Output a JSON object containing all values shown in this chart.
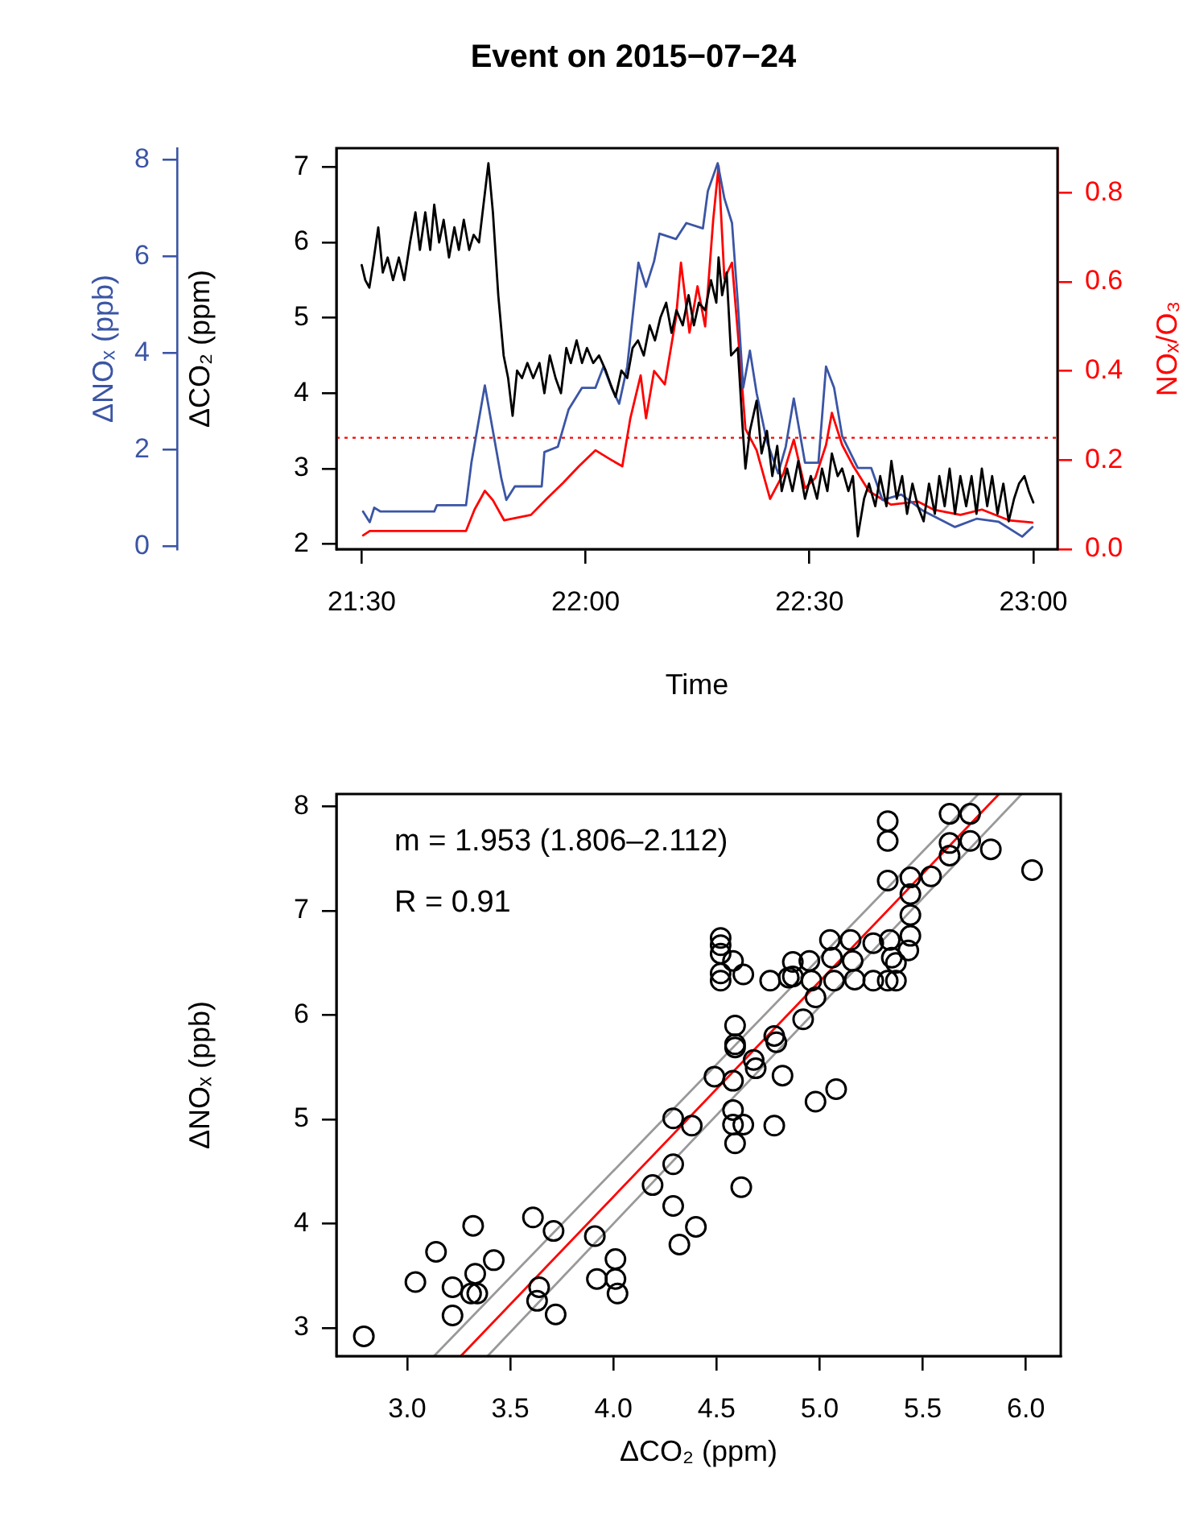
{
  "chart_data": [
    {
      "type": "line",
      "title": "Event on 2015−07−24",
      "xlabel": "Time",
      "ylabel": "ΔCO₂ (ppm)",
      "y2label": "NOₓ/O₃",
      "y3label": "ΔNOₓ (ppb)",
      "xlim": [
        21.4435,
        23.054
      ],
      "xticks": [
        {
          "value": 21.5,
          "label": "21:30"
        },
        {
          "value": 22,
          "label": "22:00"
        },
        {
          "value": 22.5,
          "label": "22:30"
        },
        {
          "value": 23,
          "label": "23:00"
        }
      ],
      "ylim": [
        1.93,
        7.25
      ],
      "yticks": [
        2,
        3,
        4,
        5,
        6,
        7
      ],
      "y2lim": [
        0,
        0.9
      ],
      "y2ticks": [
        {
          "value": 0,
          "label": "0.0"
        },
        0.2,
        0.4,
        0.6,
        0.8
      ],
      "y3lim": [
        -0.06,
        8.24
      ],
      "y3ticks": [
        0,
        2,
        4,
        6,
        8
      ],
      "grid": false,
      "legend": false,
      "line_style": "solid",
      "ref_lines": [
        {
          "axis": "y2",
          "value": 0.25,
          "color": "#ff0000",
          "line_style": "dotted"
        }
      ],
      "series": [
        {
          "color": "#000000",
          "x": [
            21.5,
            21.508,
            21.517,
            21.525,
            21.537,
            21.547,
            21.558,
            21.57,
            21.583,
            21.595,
            21.608,
            21.62,
            21.63,
            21.642,
            21.653,
            21.662,
            21.673,
            21.683,
            21.695,
            21.707,
            21.717,
            21.728,
            21.74,
            21.75,
            21.762,
            21.772,
            21.783,
            21.793,
            21.805,
            21.817,
            21.827,
            21.837,
            21.847,
            21.858,
            21.87,
            21.883,
            21.897,
            21.908,
            21.92,
            21.933,
            21.945,
            21.957,
            21.967,
            21.98,
            21.992,
            22.003,
            22.017,
            22.03,
            22.045,
            22.057,
            22.067,
            22.08,
            22.093,
            22.105,
            22.117,
            22.13,
            22.143,
            22.155,
            22.167,
            22.18,
            22.192,
            22.203,
            22.217,
            22.23,
            22.242,
            22.253,
            22.267,
            22.28,
            22.292,
            22.297,
            22.305,
            22.315,
            22.325,
            22.34,
            22.35,
            22.357,
            22.367,
            22.382,
            22.393,
            22.405,
            22.417,
            22.428,
            22.438,
            22.45,
            22.462,
            22.475,
            22.49,
            22.503,
            22.517,
            22.528,
            22.54,
            22.55,
            22.563,
            22.573,
            22.587,
            22.597,
            22.608,
            22.622,
            22.633,
            22.647,
            22.658,
            22.672,
            22.683,
            22.695,
            22.707,
            22.718,
            22.73,
            22.742,
            22.755,
            22.767,
            22.78,
            22.79,
            22.802,
            22.813,
            22.825,
            22.837,
            22.85,
            22.862,
            22.873,
            22.885,
            22.897,
            22.908,
            22.92,
            22.933,
            22.945,
            22.957,
            22.968,
            22.98,
            22.99,
            23.0
          ],
          "values": [
            5.7,
            5.5,
            5.4,
            5.7,
            6.2,
            5.6,
            5.8,
            5.5,
            5.8,
            5.5,
            6.0,
            6.4,
            5.9,
            6.4,
            5.9,
            6.5,
            6.0,
            6.3,
            5.8,
            6.2,
            5.9,
            6.3,
            5.9,
            6.1,
            6.0,
            6.5,
            7.05,
            6.4,
            5.3,
            4.5,
            4.2,
            3.7,
            4.3,
            4.2,
            4.4,
            4.2,
            4.4,
            4.0,
            4.5,
            4.2,
            4.0,
            4.6,
            4.4,
            4.7,
            4.4,
            4.6,
            4.4,
            4.5,
            4.3,
            4.1,
            3.95,
            4.3,
            4.2,
            4.6,
            4.7,
            4.5,
            4.9,
            4.7,
            5.0,
            5.2,
            4.8,
            5.1,
            4.9,
            5.3,
            4.9,
            5.2,
            5.1,
            5.5,
            5.2,
            5.8,
            5.3,
            5.6,
            4.5,
            4.6,
            3.6,
            3.0,
            3.5,
            3.9,
            3.2,
            3.5,
            2.9,
            3.3,
            2.7,
            3.0,
            2.7,
            3.1,
            2.6,
            2.9,
            2.6,
            3.0,
            2.7,
            3.2,
            2.9,
            3.0,
            2.7,
            2.9,
            2.1,
            2.6,
            2.8,
            2.5,
            2.9,
            2.5,
            3.1,
            2.6,
            2.9,
            2.4,
            2.8,
            2.5,
            2.3,
            2.8,
            2.4,
            2.9,
            2.5,
            3.0,
            2.4,
            2.9,
            2.5,
            2.9,
            2.4,
            3.0,
            2.5,
            2.9,
            2.4,
            2.8,
            2.3,
            2.6,
            2.8,
            2.9,
            2.7,
            2.55
          ]
        },
        {
          "color": "#3b55a5",
          "axis": "y3",
          "x": [
            21.503,
            21.518,
            21.528,
            21.542,
            21.662,
            21.668,
            21.733,
            21.745,
            21.775,
            21.793,
            21.812,
            21.823,
            21.842,
            21.902,
            21.908,
            21.938,
            21.962,
            21.992,
            22.022,
            22.04,
            22.058,
            22.075,
            22.093,
            22.118,
            22.135,
            22.153,
            22.165,
            22.202,
            22.225,
            22.262,
            22.273,
            22.295,
            22.31,
            22.327,
            22.34,
            22.352,
            22.367,
            22.382,
            22.405,
            22.43,
            22.447,
            22.465,
            22.49,
            22.52,
            22.537,
            22.555,
            22.573,
            22.608,
            22.638,
            22.663,
            22.705,
            22.753,
            22.825,
            22.873,
            22.922,
            22.975,
            22.998
          ],
          "values": [
            0.72,
            0.5,
            0.8,
            0.72,
            0.72,
            0.85,
            0.85,
            1.73,
            3.33,
            2.39,
            1.4,
            0.96,
            1.24,
            1.24,
            1.95,
            2.06,
            2.83,
            3.28,
            3.28,
            3.72,
            3.28,
            2.95,
            3.72,
            5.87,
            5.37,
            5.9,
            6.47,
            6.36,
            6.69,
            6.58,
            7.35,
            7.93,
            7.2,
            6.69,
            5.04,
            3.28,
            4.05,
            3.17,
            2.17,
            1.51,
            2.06,
            3.06,
            1.73,
            1.73,
            3.72,
            3.28,
            2.28,
            1.62,
            1.62,
            0.96,
            1.07,
            0.74,
            0.4,
            0.57,
            0.51,
            0.2,
            0.4
          ]
        },
        {
          "color": "#ff0000",
          "axis": "y2",
          "x": [
            21.503,
            21.518,
            21.733,
            21.752,
            21.775,
            21.793,
            21.818,
            21.878,
            21.913,
            21.95,
            21.985,
            22.022,
            22.058,
            22.082,
            22.1,
            22.123,
            22.135,
            22.153,
            22.177,
            22.202,
            22.213,
            22.232,
            22.25,
            22.267,
            22.285,
            22.297,
            22.31,
            22.327,
            22.345,
            22.357,
            22.382,
            22.412,
            22.442,
            22.465,
            22.49,
            22.513,
            22.537,
            22.55,
            22.573,
            22.597,
            22.633,
            22.682,
            22.742,
            22.777,
            22.837,
            22.885,
            22.945,
            22.998
          ],
          "values": [
            0.031,
            0.041,
            0.041,
            0.089,
            0.131,
            0.11,
            0.065,
            0.077,
            0.113,
            0.149,
            0.186,
            0.222,
            0.2,
            0.186,
            0.294,
            0.39,
            0.294,
            0.4,
            0.37,
            0.52,
            0.643,
            0.486,
            0.59,
            0.5,
            0.739,
            0.86,
            0.607,
            0.643,
            0.426,
            0.27,
            0.222,
            0.113,
            0.17,
            0.246,
            0.137,
            0.16,
            0.234,
            0.306,
            0.234,
            0.188,
            0.13,
            0.1,
            0.107,
            0.089,
            0.077,
            0.089,
            0.065,
            0.06
          ]
        }
      ]
    },
    {
      "type": "scatter",
      "xlabel": "ΔCO₂ (ppm)",
      "ylabel": "ΔNOₓ (ppb)",
      "xlim": [
        2.657,
        6.169
      ],
      "xticks": [
        {
          "value": 3,
          "label": "3.0"
        },
        3.5,
        {
          "value": 4,
          "label": "4.0"
        },
        4.5,
        {
          "value": 5,
          "label": "5.0"
        },
        5.5,
        {
          "value": 6,
          "label": "6.0"
        }
      ],
      "ylim": [
        2.73,
        8.12
      ],
      "yticks": [
        3,
        4,
        5,
        6,
        7,
        8
      ],
      "grid": false,
      "legend": false,
      "annotations": [
        "m = 1.953 (1.806–2.112)",
        "R = 0.91"
      ],
      "series": [
        {
          "color": "#000000",
          "marker": "circle",
          "x": [
            2.79,
            3.04,
            3.14,
            3.22,
            3.22,
            3.32,
            3.33,
            3.31,
            3.34,
            3.42,
            3.61,
            3.64,
            3.63,
            3.71,
            3.72,
            3.91,
            3.92,
            4.01,
            4.01,
            4.02,
            4.19,
            4.29,
            4.29,
            4.29,
            4.32,
            4.38,
            4.4,
            4.49,
            4.58,
            4.58,
            4.58,
            4.63,
            4.59,
            4.62,
            4.59,
            4.59,
            4.59,
            4.68,
            4.69,
            4.78,
            4.79,
            4.82,
            4.78,
            4.92,
            4.98,
            4.98,
            5.08,
            4.52,
            4.52,
            4.52,
            4.58,
            4.52,
            4.52,
            4.63,
            4.76,
            4.85,
            4.87,
            4.87,
            4.95,
            4.96,
            5.05,
            5.06,
            5.07,
            5.15,
            5.16,
            5.17,
            5.26,
            5.26,
            5.33,
            5.34,
            5.35,
            5.37,
            5.37,
            5.43,
            5.44,
            5.44,
            5.44,
            5.44,
            5.33,
            5.33,
            5.33,
            5.54,
            5.63,
            5.63,
            5.63,
            5.73,
            5.73,
            5.83,
            6.03
          ],
          "values": [
            2.92,
            3.44,
            3.73,
            3.39,
            3.12,
            3.98,
            3.52,
            3.33,
            3.33,
            3.65,
            4.06,
            3.39,
            3.26,
            3.93,
            3.13,
            3.88,
            3.47,
            3.66,
            3.47,
            3.33,
            4.37,
            5.01,
            4.57,
            4.17,
            3.8,
            4.94,
            3.97,
            5.41,
            5.37,
            5.09,
            4.95,
            4.95,
            4.77,
            4.35,
            5.9,
            5.72,
            5.69,
            5.57,
            5.49,
            5.8,
            5.74,
            5.42,
            4.94,
            5.96,
            6.17,
            5.17,
            5.29,
            6.74,
            6.67,
            6.59,
            6.52,
            6.4,
            6.33,
            6.39,
            6.33,
            6.36,
            6.51,
            6.37,
            6.52,
            6.33,
            6.72,
            6.55,
            6.33,
            6.72,
            6.52,
            6.34,
            6.69,
            6.33,
            6.33,
            6.72,
            6.55,
            6.5,
            6.33,
            6.62,
            6.76,
            6.96,
            7.16,
            7.32,
            7.29,
            7.67,
            7.86,
            7.33,
            7.53,
            7.65,
            7.93,
            7.93,
            7.67,
            7.59,
            7.39
          ]
        },
        {
          "type": "line",
          "color": "#999999",
          "x": [
            3.13,
            5.77
          ],
          "values": [
            2.73,
            8.12
          ]
        },
        {
          "type": "line",
          "color": "#999999",
          "x": [
            3.39,
            5.98
          ],
          "values": [
            2.73,
            8.12
          ]
        },
        {
          "type": "line",
          "color": "#ff0000",
          "x": [
            3.26,
            5.87
          ],
          "values": [
            2.73,
            8.12
          ]
        }
      ]
    }
  ]
}
